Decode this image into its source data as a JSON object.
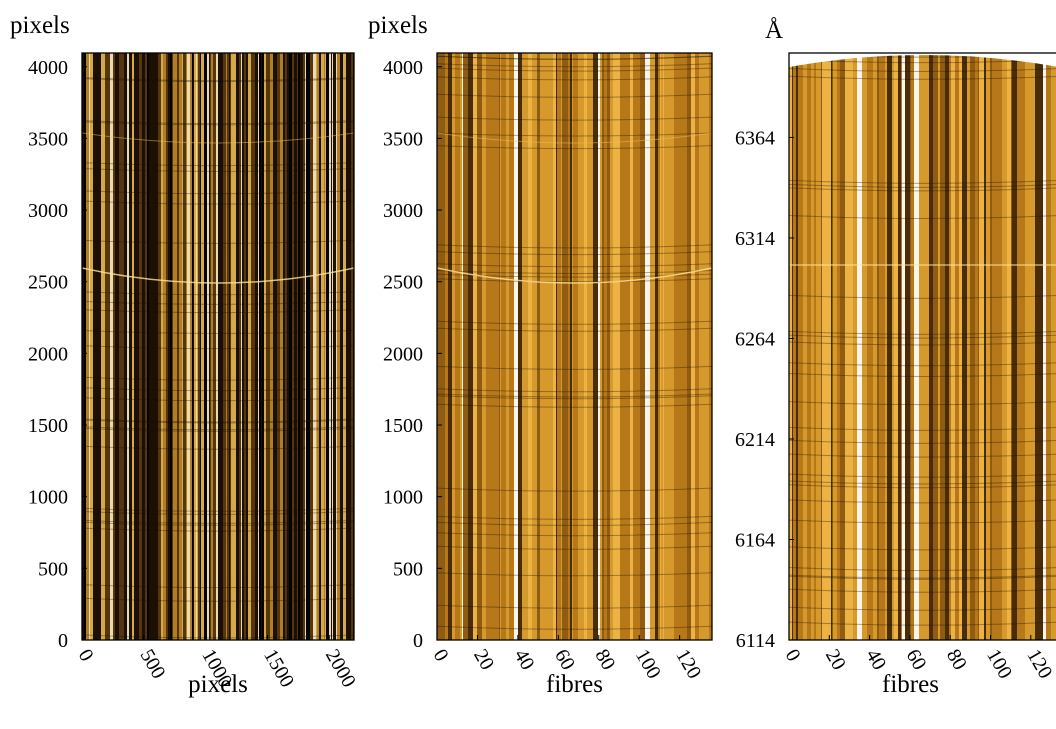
{
  "chart_data": [
    {
      "type": "image",
      "ylabel": "pixels",
      "xlabel": "pixels",
      "xlim": [
        0,
        2200
      ],
      "ylim": [
        0,
        4096
      ],
      "xticks": [
        0,
        500,
        1000,
        1500,
        2000
      ],
      "yticks": [
        0,
        500,
        1000,
        1500,
        2000,
        2500,
        3000,
        3500,
        4000
      ]
    },
    {
      "type": "image",
      "ylabel": "pixels",
      "xlabel": "fibres",
      "xlim": [
        0,
        136
      ],
      "ylim": [
        0,
        4096
      ],
      "xticks": [
        0,
        20,
        40,
        60,
        80,
        100,
        120
      ],
      "yticks": [
        0,
        500,
        1000,
        1500,
        2000,
        2500,
        3000,
        3500,
        4000
      ]
    },
    {
      "type": "image",
      "ylabel": "Å",
      "xlabel": "fibres",
      "xlim": [
        0,
        134
      ],
      "ylim": [
        6114,
        6406
      ],
      "xticks": [
        0,
        20,
        40,
        60,
        80,
        100,
        120
      ],
      "yticks": [
        6114,
        6164,
        6214,
        6264,
        6314,
        6364
      ]
    }
  ]
}
